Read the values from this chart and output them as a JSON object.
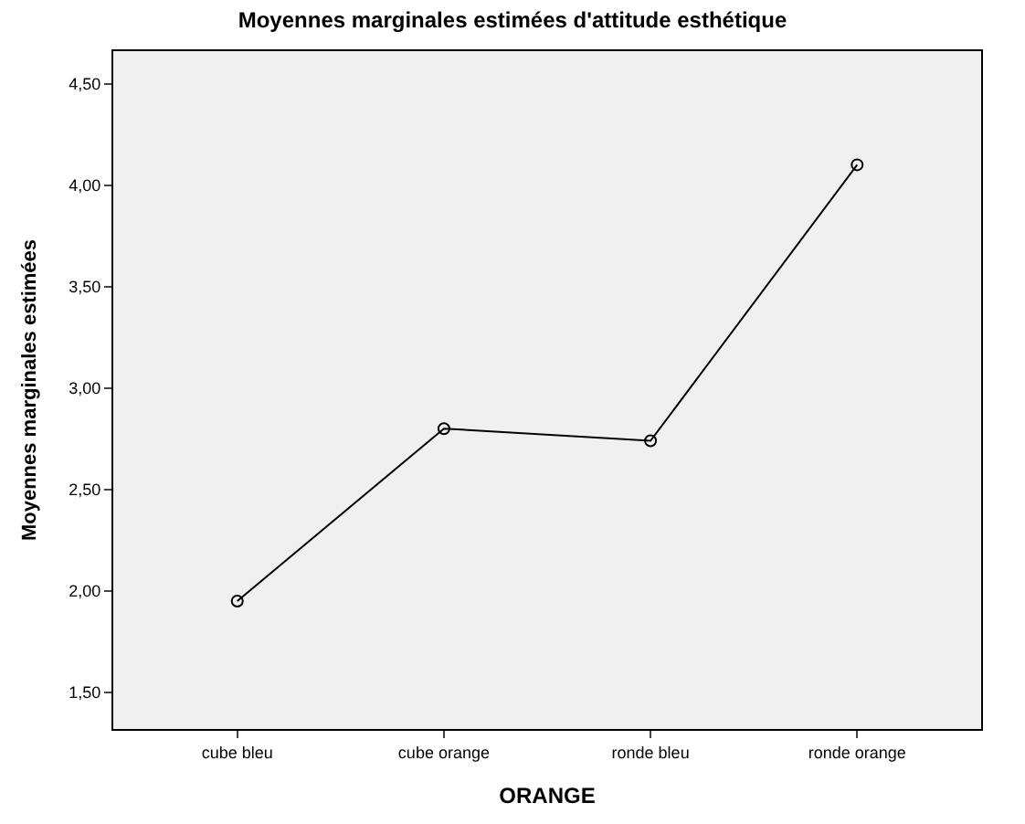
{
  "chart_data": {
    "type": "line",
    "title": "Moyennes marginales estimées d'attitude esthétique",
    "xlabel": "ORANGE",
    "ylabel": "Moyennes marginales estimées",
    "categories": [
      "cube bleu",
      "cube orange",
      "ronde bleu",
      "ronde orange"
    ],
    "values": [
      1.95,
      2.8,
      2.74,
      4.1
    ],
    "color": "#000000",
    "marker": "circle",
    "line_style": "solid",
    "ylim": [
      1.32,
      4.66
    ],
    "yticks": [
      {
        "value": 1.5,
        "label": "1,50"
      },
      {
        "value": 2.0,
        "label": "2,00"
      },
      {
        "value": 2.5,
        "label": "2,50"
      },
      {
        "value": 3.0,
        "label": "3,00"
      },
      {
        "value": 3.5,
        "label": "3,50"
      },
      {
        "value": 4.0,
        "label": "4,00"
      },
      {
        "value": 4.5,
        "label": "4,50"
      }
    ],
    "grid": false,
    "legend": false
  }
}
